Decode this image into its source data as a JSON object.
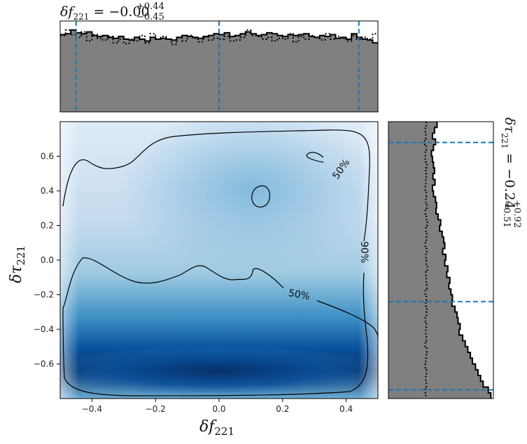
{
  "chart_data": [
    {
      "type": "heatmap",
      "panel": "joint",
      "xlabel": "δf",
      "xlabel_sub": "221",
      "ylabel": "δτ",
      "ylabel_sub": "221",
      "xlim": [
        -0.5,
        0.5
      ],
      "ylim": [
        -0.8,
        0.8
      ],
      "xticks": [
        -0.4,
        -0.2,
        0.0,
        0.2,
        0.4
      ],
      "xtick_labels": [
        "−0.4",
        "−0.2",
        "0.0",
        "0.2",
        "0.4"
      ],
      "yticks": [
        -0.6,
        -0.4,
        -0.2,
        0.0,
        0.2,
        0.4,
        0.6
      ],
      "ytick_labels": [
        "−0.6",
        "−0.4",
        "−0.2",
        "0.0",
        "0.2",
        "0.4",
        "0.6"
      ],
      "colormap": "Blues",
      "density_dense_region": "δτ ≈ −0.65, across full δf range",
      "contours": [
        {
          "level": "50%",
          "label": "50%"
        },
        {
          "level": "90%",
          "label": "90%"
        }
      ],
      "contour_label_50_lower": "50%",
      "contour_label_50_upper": "50%",
      "contour_label_90": "90%"
    },
    {
      "type": "bar",
      "panel": "top-marginal",
      "variable": "δf221",
      "title_main": "δf",
      "title_sub": "221",
      "title_value": " = −0.00",
      "title_plus": "+0.44",
      "title_minus": "−0.45",
      "median": 0.0,
      "upper": 0.44,
      "lower": -0.45,
      "filled_color": "#808080",
      "quantile_line_color": "#1f77b4",
      "bins_posterior": [
        0.85,
        0.86,
        0.9,
        0.87,
        0.86,
        0.88,
        0.84,
        0.83,
        0.84,
        0.82,
        0.81,
        0.83,
        0.8,
        0.79,
        0.82,
        0.8,
        0.78,
        0.82,
        0.8,
        0.81,
        0.8,
        0.79,
        0.82,
        0.84,
        0.83,
        0.82,
        0.81,
        0.83,
        0.84,
        0.86,
        0.85,
        0.87,
        0.83,
        0.84,
        0.86,
        0.88,
        0.86,
        0.84,
        0.85,
        0.87,
        0.86,
        0.84,
        0.83,
        0.85,
        0.84,
        0.85,
        0.86,
        0.83,
        0.82,
        0.84,
        0.83,
        0.85,
        0.81,
        0.82,
        0.8,
        0.86,
        0.82,
        0.8,
        0.79,
        0.76
      ],
      "bins_prior": [
        0.84,
        0.9,
        0.85,
        0.82,
        0.88,
        0.78,
        0.85,
        0.81,
        0.79,
        0.83,
        0.76,
        0.8,
        0.75,
        0.8,
        0.78,
        0.84,
        0.76,
        0.86,
        0.8,
        0.83,
        0.8,
        0.74,
        0.82,
        0.78,
        0.84,
        0.81,
        0.77,
        0.82,
        0.79,
        0.81,
        0.8,
        0.83,
        0.78,
        0.79,
        0.82,
        0.9,
        0.84,
        0.83,
        0.8,
        0.82,
        0.78,
        0.81,
        0.8,
        0.86,
        0.77,
        0.83,
        0.8,
        0.84,
        0.82,
        0.79,
        0.86,
        0.8,
        0.83,
        0.81,
        0.78,
        0.84,
        0.8,
        0.82,
        0.8,
        0.86
      ]
    },
    {
      "type": "bar",
      "panel": "right-marginal",
      "variable": "δτ221",
      "title_main": "δτ",
      "title_sub": "221",
      "title_value": " = −0.24",
      "title_plus": "+0.92",
      "title_minus": "−0.51",
      "median": -0.24,
      "upper": 0.68,
      "lower": -0.75,
      "filled_color": "#808080",
      "quantile_line_color": "#1f77b4",
      "bins_posterior": [
        0.95,
        0.9,
        0.86,
        0.92,
        0.88,
        0.84,
        0.86,
        0.88,
        0.9,
        0.87,
        0.91,
        0.86,
        0.88,
        0.92,
        0.94,
        0.93,
        0.97,
        1.02,
        1.0,
        1.05,
        1.08,
        1.1,
        1.06,
        1.12,
        1.1,
        1.16,
        1.14,
        1.2,
        1.18,
        1.22,
        1.25,
        1.24,
        1.3,
        1.34,
        1.36,
        1.4,
        1.38,
        1.45,
        1.5,
        1.55,
        1.6,
        1.64,
        1.7,
        1.75,
        1.8,
        1.85,
        1.95,
        2.0
      ],
      "bins_prior": [
        0.74,
        0.72,
        0.73,
        0.71,
        0.74,
        0.72,
        0.72,
        0.75,
        0.73,
        0.74,
        0.73,
        0.72,
        0.74,
        0.73,
        0.75,
        0.72,
        0.74,
        0.76,
        0.73,
        0.75,
        0.74,
        0.72,
        0.75,
        0.73,
        0.74,
        0.76,
        0.73,
        0.74,
        0.75,
        0.72,
        0.74,
        0.73,
        0.75,
        0.74,
        0.72,
        0.74,
        0.73,
        0.74,
        0.72,
        0.75,
        0.74,
        0.73,
        0.72,
        0.74,
        0.73,
        0.74,
        0.72,
        0.73
      ]
    }
  ]
}
